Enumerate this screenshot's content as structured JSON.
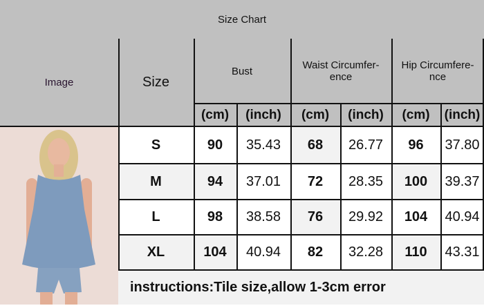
{
  "title": "Size Chart",
  "headers": {
    "image": "Image",
    "size": "Size",
    "bust": "Bust",
    "waist": "Waist Circumfer-ence",
    "hip": "Hip Circumfere-nce",
    "cm": "(cm)",
    "inch": "(inch)"
  },
  "rows": [
    {
      "size": "S",
      "bust_cm": "90",
      "bust_in": "35.43",
      "waist_cm": "68",
      "waist_in": "26.77",
      "hip_cm": "96",
      "hip_in": "37.80"
    },
    {
      "size": "M",
      "bust_cm": "94",
      "bust_in": "37.01",
      "waist_cm": "72",
      "waist_in": "28.35",
      "hip_cm": "100",
      "hip_in": "39.37"
    },
    {
      "size": "L",
      "bust_cm": "98",
      "bust_in": "38.58",
      "waist_cm": "76",
      "waist_in": "29.92",
      "hip_cm": "104",
      "hip_in": "40.94"
    },
    {
      "size": "XL",
      "bust_cm": "104",
      "bust_in": "40.94",
      "waist_cm": "82",
      "waist_in": "32.28",
      "hip_cm": "110",
      "hip_in": "43.31"
    }
  ],
  "instructions": "instructions:Tile size,allow 1-3cm error",
  "colors": {
    "header_bg": "#c0c0c0",
    "shade": "#f2f2f2",
    "denim": "#7e9bbd"
  }
}
